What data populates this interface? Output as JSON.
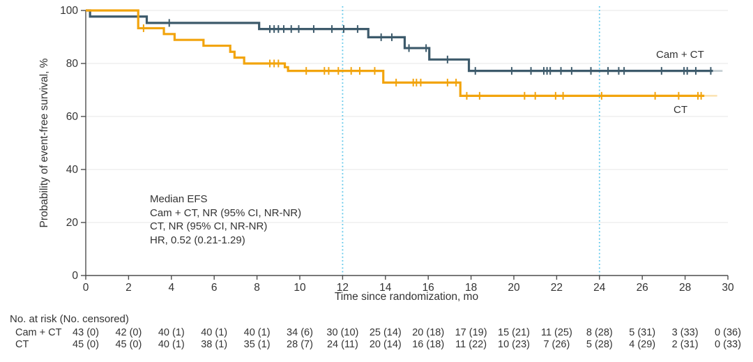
{
  "chart_data": {
    "type": "line",
    "subtype": "kaplan-meier-step-curve",
    "title": "",
    "xlabel": "Time since randomization, mo",
    "ylabel": "Probability of event-free survival, %",
    "xlim": [
      0,
      30
    ],
    "ylim": [
      0,
      100
    ],
    "xticks": [
      0,
      2,
      4,
      6,
      8,
      10,
      12,
      14,
      16,
      18,
      20,
      22,
      24,
      26,
      28,
      30
    ],
    "yticks": [
      0,
      20,
      40,
      60,
      80,
      100
    ],
    "grid": "horizontal-light",
    "grid_color": "#ECECEC",
    "axis_color": "#4D4D4D",
    "text_color": "#333333",
    "reference_lines_x": [
      12,
      24
    ],
    "reference_line_color": "#5BC6EA",
    "series": [
      {
        "name": "Cam + CT",
        "color": "#3D5A6B",
        "steps": [
          [
            0,
            100
          ],
          [
            0.2,
            97.7
          ],
          [
            2.85,
            95.3
          ],
          [
            8.1,
            93.0
          ],
          [
            13.2,
            89.9
          ],
          [
            14.9,
            85.8
          ],
          [
            16.05,
            81.5
          ],
          [
            17.9,
            77.2
          ]
        ],
        "end_x": 29.3,
        "tail_x": 29.75,
        "censors": [
          [
            3.9,
            95.3
          ],
          [
            8.6,
            93.0
          ],
          [
            8.8,
            93.0
          ],
          [
            9.0,
            93.0
          ],
          [
            9.25,
            93.0
          ],
          [
            9.6,
            93.0
          ],
          [
            9.95,
            93.0
          ],
          [
            10.65,
            93.0
          ],
          [
            11.5,
            93.0
          ],
          [
            12.05,
            93.0
          ],
          [
            12.7,
            93.0
          ],
          [
            13.8,
            89.9
          ],
          [
            14.3,
            89.9
          ],
          [
            15.1,
            85.8
          ],
          [
            15.9,
            85.8
          ],
          [
            16.9,
            81.5
          ],
          [
            18.2,
            77.2
          ],
          [
            19.9,
            77.2
          ],
          [
            20.8,
            77.2
          ],
          [
            21.4,
            77.2
          ],
          [
            21.55,
            77.2
          ],
          [
            21.7,
            77.2
          ],
          [
            22.2,
            77.2
          ],
          [
            22.7,
            77.2
          ],
          [
            23.6,
            77.2
          ],
          [
            24.4,
            77.2
          ],
          [
            24.9,
            77.2
          ],
          [
            25.15,
            77.2
          ],
          [
            26.9,
            77.2
          ],
          [
            27.95,
            77.2
          ],
          [
            28.1,
            77.2
          ],
          [
            28.5,
            77.2
          ],
          [
            29.2,
            77.2
          ]
        ]
      },
      {
        "name": "CT",
        "color": "#F2A40D",
        "steps": [
          [
            0,
            100
          ],
          [
            2.45,
            93.3
          ],
          [
            3.65,
            91.1
          ],
          [
            4.15,
            88.9
          ],
          [
            5.5,
            86.7
          ],
          [
            6.75,
            84.4
          ],
          [
            6.95,
            82.2
          ],
          [
            7.4,
            80.0
          ],
          [
            9.3,
            78.6
          ],
          [
            9.45,
            77.2
          ],
          [
            13.9,
            72.8
          ],
          [
            17.5,
            67.8
          ]
        ],
        "end_x": 28.9,
        "tail_x": 29.5,
        "censors": [
          [
            2.7,
            93.3
          ],
          [
            8.6,
            80.0
          ],
          [
            8.8,
            80.0
          ],
          [
            9.0,
            80.0
          ],
          [
            10.3,
            77.2
          ],
          [
            11.15,
            77.2
          ],
          [
            11.35,
            77.2
          ],
          [
            11.8,
            77.2
          ],
          [
            12.4,
            77.2
          ],
          [
            12.8,
            77.2
          ],
          [
            13.5,
            77.2
          ],
          [
            14.5,
            72.8
          ],
          [
            15.3,
            72.8
          ],
          [
            15.45,
            72.8
          ],
          [
            15.65,
            72.8
          ],
          [
            16.9,
            72.8
          ],
          [
            17.3,
            72.8
          ],
          [
            17.8,
            67.8
          ],
          [
            18.4,
            67.8
          ],
          [
            20.5,
            67.8
          ],
          [
            21.0,
            67.8
          ],
          [
            21.95,
            67.8
          ],
          [
            22.3,
            67.8
          ],
          [
            24.1,
            67.8
          ],
          [
            26.6,
            67.8
          ],
          [
            27.7,
            67.8
          ],
          [
            28.6,
            67.8
          ],
          [
            28.75,
            67.8
          ]
        ]
      }
    ],
    "annotation": {
      "lines": [
        "Median EFS",
        "Cam + CT, NR (95% CI, NR-NR)",
        "CT, NR (95% CI, NR-NR)",
        "HR, 0.52 (0.21-1.29)"
      ]
    }
  },
  "risk_table": {
    "header": "No. at risk (No. censored)",
    "times": [
      0,
      2,
      4,
      6,
      8,
      10,
      12,
      14,
      16,
      18,
      20,
      22,
      24,
      26,
      28,
      30
    ],
    "rows": [
      {
        "label": "Cam + CT",
        "values": [
          "43 (0)",
          "42 (0)",
          "40 (1)",
          "40 (1)",
          "40 (1)",
          "34 (6)",
          "30 (10)",
          "25 (14)",
          "20 (18)",
          "17 (19)",
          "15 (21)",
          "11 (25)",
          "8 (28)",
          "5 (31)",
          "3 (33)",
          "0 (36)"
        ]
      },
      {
        "label": "CT",
        "values": [
          "45 (0)",
          "45 (0)",
          "40 (1)",
          "38 (1)",
          "35 (1)",
          "28 (7)",
          "24 (11)",
          "20 (14)",
          "16 (18)",
          "11 (22)",
          "10 (23)",
          "7 (26)",
          "5 (28)",
          "4 (29)",
          "2 (31)",
          "0 (33)"
        ]
      }
    ]
  }
}
